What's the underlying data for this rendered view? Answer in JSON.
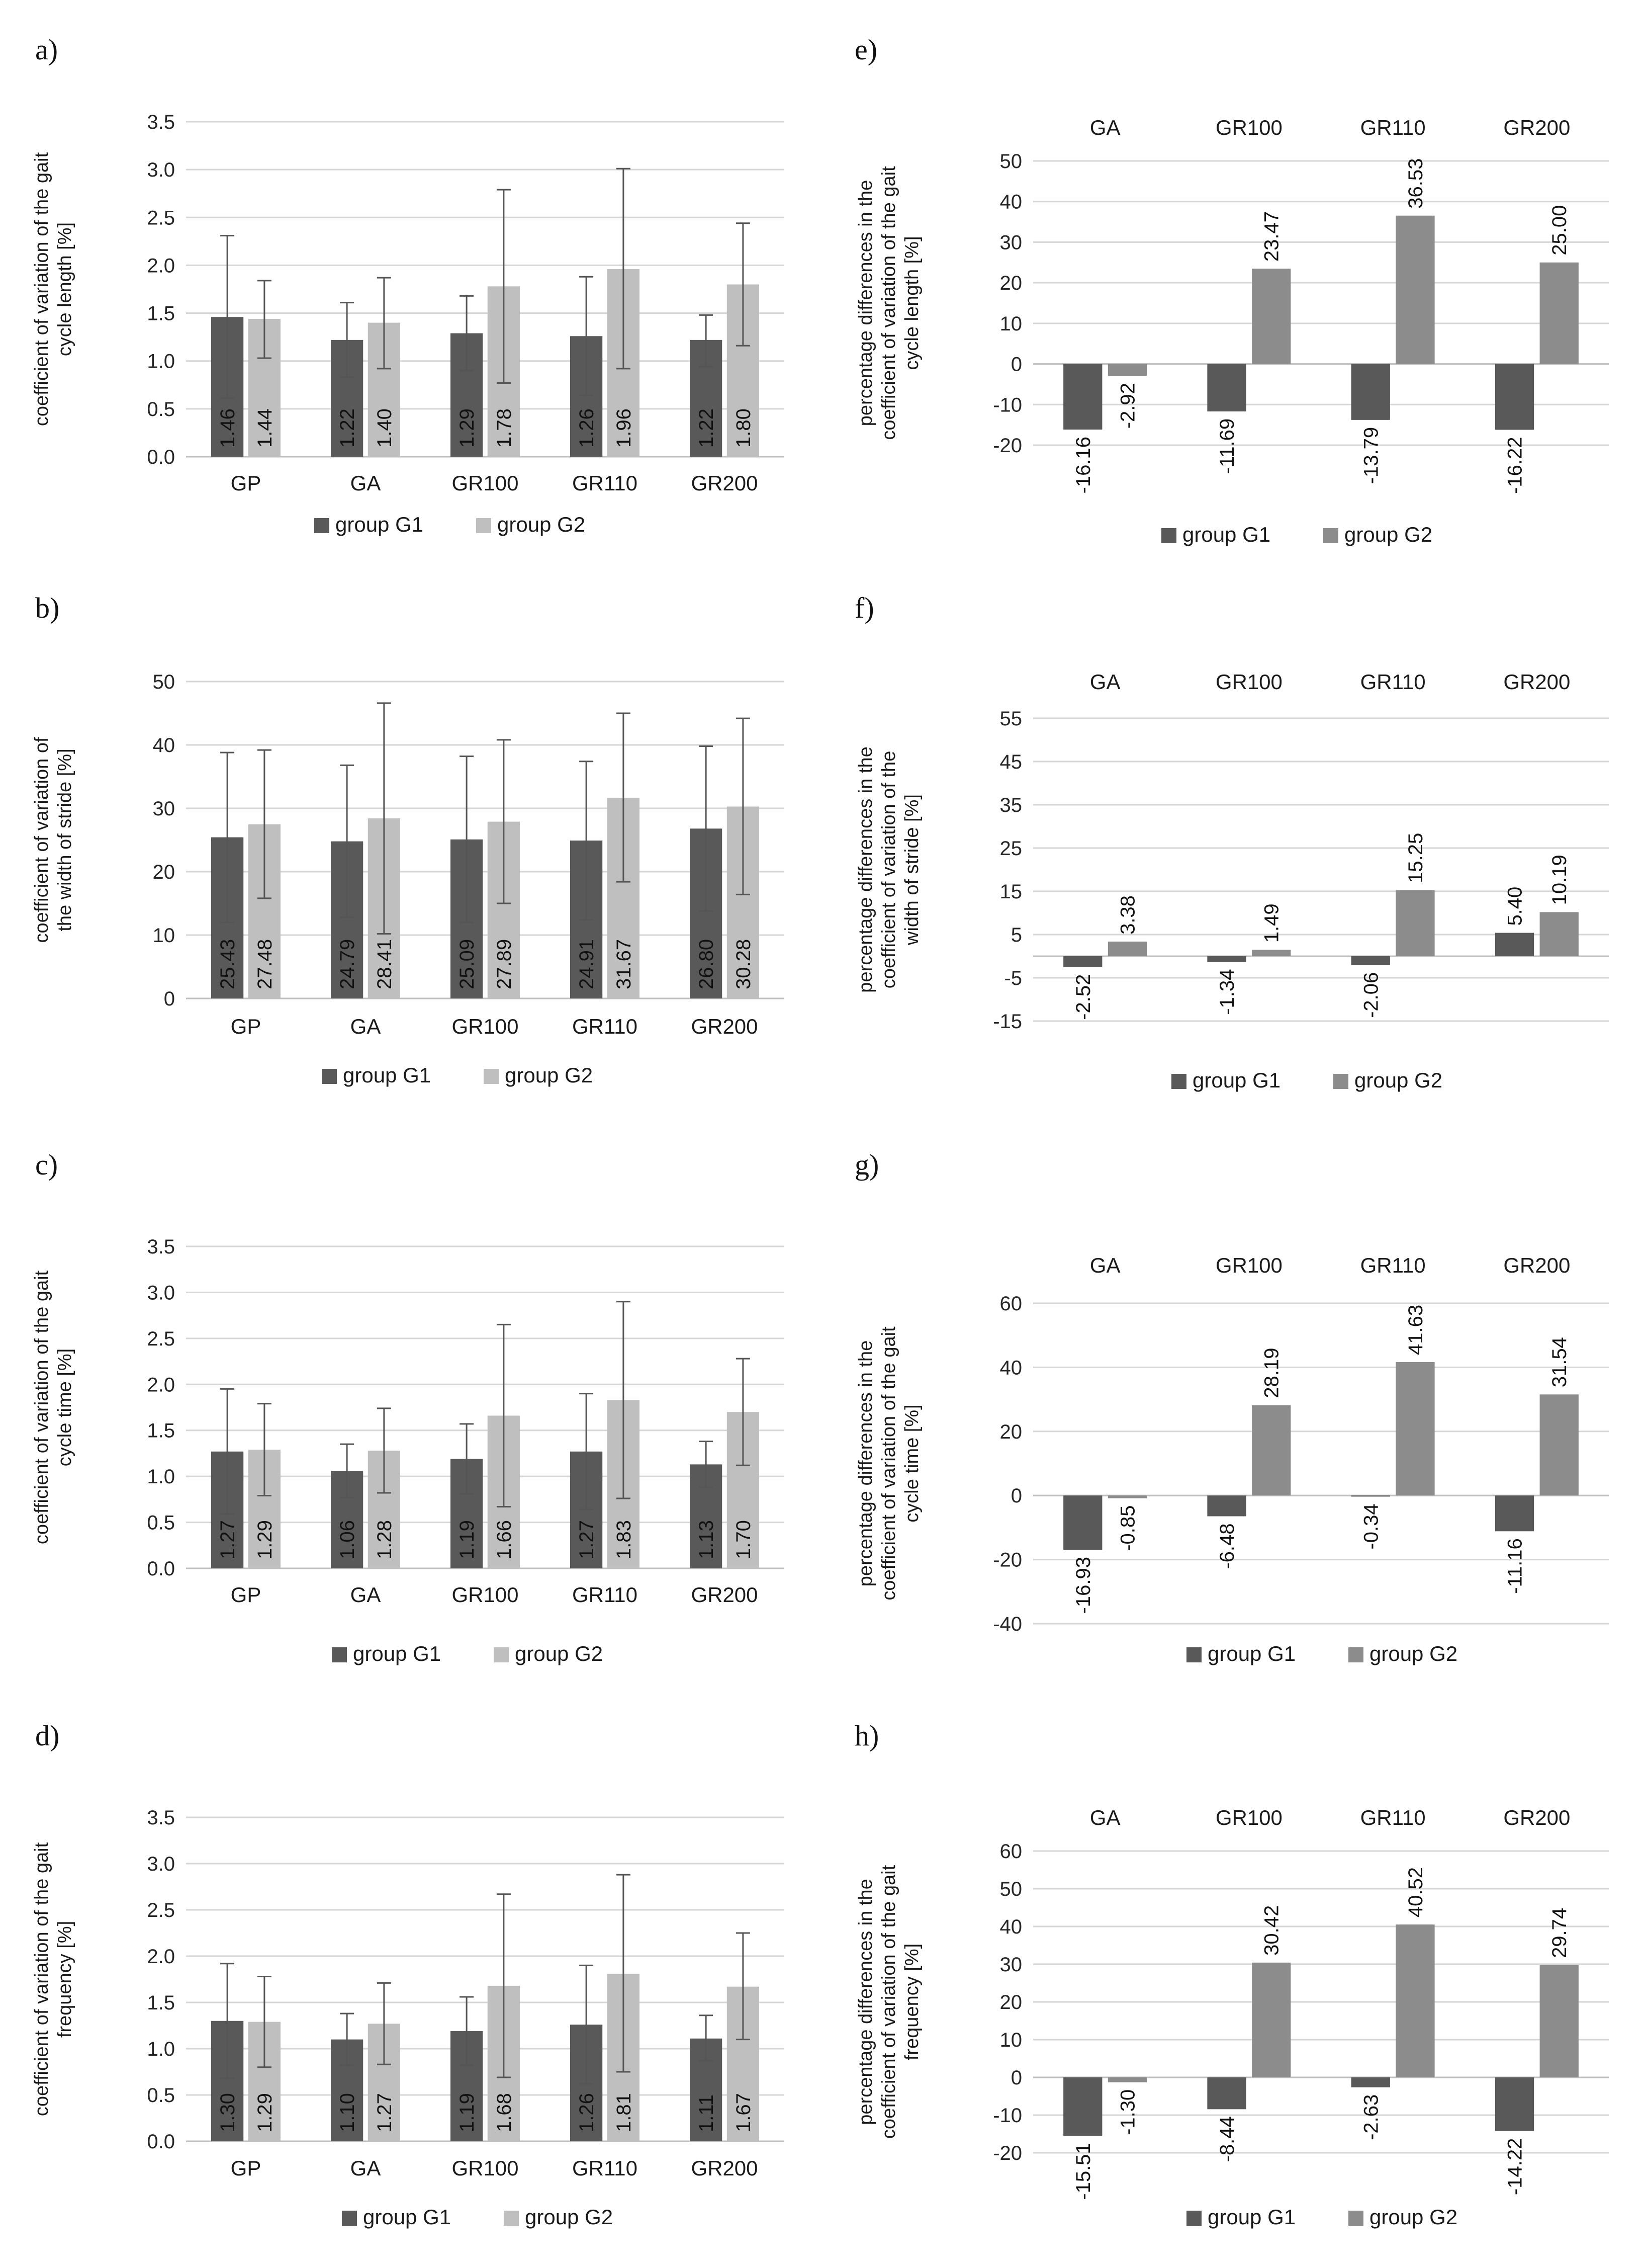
{
  "chart_data": [
    {
      "panel": "a)",
      "type": "bar",
      "ylabel": "coefficient of variation of the gait cycle length [%]",
      "categories": [
        "GP",
        "GA",
        "GR100",
        "GR110",
        "GR200"
      ],
      "ylim": [
        0,
        3.5
      ],
      "yticks": [
        "0.0",
        "0.5",
        "1.0",
        "1.5",
        "2.0",
        "2.5",
        "3.0",
        "3.5"
      ],
      "series": [
        {
          "name": "group G1",
          "color": "#595959",
          "values": [
            1.46,
            1.22,
            1.29,
            1.26,
            1.22
          ],
          "labels": [
            "1.46",
            "1.22",
            "1.29",
            "1.26",
            "1.22"
          ],
          "err_low": [
            0.61,
            0.83,
            0.9,
            0.64,
            0.94
          ],
          "err_high": [
            2.31,
            1.61,
            1.68,
            1.88,
            1.48
          ]
        },
        {
          "name": "group G2",
          "color": "#bfbfbf",
          "values": [
            1.44,
            1.4,
            1.78,
            1.96,
            1.8
          ],
          "labels": [
            "1.44",
            "1.40",
            "1.78",
            "1.96",
            "1.80"
          ],
          "err_low": [
            1.03,
            0.92,
            0.77,
            0.92,
            1.16
          ],
          "err_high": [
            1.84,
            1.87,
            2.79,
            3.01,
            2.44
          ]
        }
      ],
      "legend": [
        "group G1",
        "group G2"
      ]
    },
    {
      "panel": "b)",
      "type": "bar",
      "ylabel": "coefficient of variation of the width of stride [%]",
      "categories": [
        "GP",
        "GA",
        "GR100",
        "GR110",
        "GR200"
      ],
      "ylim": [
        0,
        50
      ],
      "yticks": [
        "0",
        "10",
        "20",
        "30",
        "40",
        "50"
      ],
      "series": [
        {
          "name": "group G1",
          "color": "#595959",
          "values": [
            25.43,
            24.79,
            25.09,
            24.91,
            26.8
          ],
          "labels": [
            "25.43",
            "24.79",
            "25.09",
            "24.91",
            "26.80"
          ],
          "err_low": [
            12.0,
            12.8,
            12.0,
            12.4,
            13.8
          ],
          "err_high": [
            38.8,
            36.8,
            38.2,
            37.4,
            39.8
          ]
        },
        {
          "name": "group G2",
          "color": "#bfbfbf",
          "values": [
            27.48,
            28.41,
            27.89,
            31.67,
            30.28
          ],
          "labels": [
            "27.48",
            "28.41",
            "27.89",
            "31.67",
            "30.28"
          ],
          "err_low": [
            15.8,
            10.2,
            15.0,
            18.4,
            16.4
          ],
          "err_high": [
            39.2,
            46.6,
            40.8,
            45.0,
            44.2
          ]
        }
      ],
      "legend": [
        "group G1",
        "group G2"
      ]
    },
    {
      "panel": "c)",
      "type": "bar",
      "ylabel": "coefficient of variation of the gait cycle time [%]",
      "categories": [
        "GP",
        "GA",
        "GR100",
        "GR110",
        "GR200"
      ],
      "ylim": [
        0,
        3.5
      ],
      "yticks": [
        "0.0",
        "0.5",
        "1.0",
        "1.5",
        "2.0",
        "2.5",
        "3.0",
        "3.5"
      ],
      "series": [
        {
          "name": "group G1",
          "color": "#595959",
          "values": [
            1.27,
            1.06,
            1.19,
            1.27,
            1.13
          ],
          "labels": [
            "1.27",
            "1.06",
            "1.19",
            "1.27",
            "1.13"
          ],
          "err_low": [
            0.59,
            0.77,
            0.81,
            0.64,
            0.88
          ],
          "err_high": [
            1.95,
            1.35,
            1.57,
            1.9,
            1.38
          ]
        },
        {
          "name": "group G2",
          "color": "#bfbfbf",
          "values": [
            1.29,
            1.28,
            1.66,
            1.83,
            1.7
          ],
          "labels": [
            "1.29",
            "1.28",
            "1.66",
            "1.83",
            "1.70"
          ],
          "err_low": [
            0.79,
            0.82,
            0.67,
            0.76,
            1.12
          ],
          "err_high": [
            1.79,
            1.74,
            2.65,
            2.9,
            2.28
          ]
        }
      ],
      "legend": [
        "group G1",
        "group G2"
      ]
    },
    {
      "panel": "d)",
      "type": "bar",
      "ylabel": "coefficient of variation of the gait frequency [%]",
      "categories": [
        "GP",
        "GA",
        "GR100",
        "GR110",
        "GR200"
      ],
      "ylim": [
        0,
        3.5
      ],
      "yticks": [
        "0.0",
        "0.5",
        "1.0",
        "1.5",
        "2.0",
        "2.5",
        "3.0",
        "3.5"
      ],
      "series": [
        {
          "name": "group G1",
          "color": "#595959",
          "values": [
            1.3,
            1.1,
            1.19,
            1.26,
            1.11
          ],
          "labels": [
            "1.30",
            "1.10",
            "1.19",
            "1.26",
            "1.11"
          ],
          "err_low": [
            0.68,
            0.82,
            0.82,
            0.62,
            0.87
          ],
          "err_high": [
            1.92,
            1.38,
            1.56,
            1.9,
            1.36
          ]
        },
        {
          "name": "group G2",
          "color": "#bfbfbf",
          "values": [
            1.29,
            1.27,
            1.68,
            1.81,
            1.67
          ],
          "labels": [
            "1.29",
            "1.27",
            "1.68",
            "1.81",
            "1.67"
          ],
          "err_low": [
            0.8,
            0.83,
            0.69,
            0.75,
            1.1
          ],
          "err_high": [
            1.78,
            1.71,
            2.67,
            2.88,
            2.25
          ]
        }
      ],
      "legend": [
        "group G1",
        "group G2"
      ]
    },
    {
      "panel": "e)",
      "type": "bar",
      "ylabel": "percentage differences in the coefficient of variation of the gait cycle length [%]",
      "categories": [
        "GA",
        "GR100",
        "GR110",
        "GR200"
      ],
      "ylim": [
        -20,
        50
      ],
      "yticks": [
        "-20",
        "-10",
        "0",
        "10",
        "20",
        "30",
        "40",
        "50"
      ],
      "series": [
        {
          "name": "group G1",
          "color": "#595959",
          "values": [
            -16.16,
            -11.69,
            -13.79,
            -16.22
          ],
          "labels": [
            "-16.16",
            "-11.69",
            "-13.79",
            "-16.22"
          ]
        },
        {
          "name": "group G2",
          "color": "#8c8c8c",
          "values": [
            -2.92,
            23.47,
            36.53,
            25.0
          ],
          "labels": [
            "-2.92",
            "23.47",
            "36.53",
            "25.00"
          ]
        }
      ],
      "legend": [
        "group G1",
        "group G2"
      ]
    },
    {
      "panel": "f)",
      "type": "bar",
      "ylabel": "percentage differences in the coefficient of variation of the width of stride [%]",
      "categories": [
        "GA",
        "GR100",
        "GR110",
        "GR200"
      ],
      "ylim": [
        -15,
        55
      ],
      "yticks": [
        "-15",
        "-5",
        "5",
        "15",
        "25",
        "35",
        "45",
        "55"
      ],
      "series": [
        {
          "name": "group G1",
          "color": "#595959",
          "values": [
            -2.52,
            -1.34,
            -2.06,
            5.4
          ],
          "labels": [
            "-2.52",
            "-1.34",
            "-2.06",
            "5.40"
          ]
        },
        {
          "name": "group G2",
          "color": "#8c8c8c",
          "values": [
            3.38,
            1.49,
            15.25,
            10.19
          ],
          "labels": [
            "3.38",
            "1.49",
            "15.25",
            "10.19"
          ]
        }
      ],
      "legend": [
        "group G1",
        "group G2"
      ]
    },
    {
      "panel": "g)",
      "type": "bar",
      "ylabel": "percentage differences in the coefficient of variation of the gait cycle time [%]",
      "categories": [
        "GA",
        "GR100",
        "GR110",
        "GR200"
      ],
      "ylim": [
        -40,
        60
      ],
      "yticks": [
        "-40",
        "-20",
        "0",
        "20",
        "40",
        "60"
      ],
      "series": [
        {
          "name": "group G1",
          "color": "#595959",
          "values": [
            -16.93,
            -6.48,
            -0.34,
            -11.16
          ],
          "labels": [
            "-16.93",
            "-6.48",
            "-0.34",
            "-11.16"
          ]
        },
        {
          "name": "group G2",
          "color": "#8c8c8c",
          "values": [
            -0.85,
            28.19,
            41.63,
            31.54
          ],
          "labels": [
            "-0.85",
            "28.19",
            "41.63",
            "31.54"
          ]
        }
      ],
      "legend": [
        "group G1",
        "group G2"
      ]
    },
    {
      "panel": "h)",
      "type": "bar",
      "ylabel": "percentage differences in the coefficient of variation of the gait frequency [%]",
      "categories": [
        "GA",
        "GR100",
        "GR110",
        "GR200"
      ],
      "ylim": [
        -20,
        60
      ],
      "yticks": [
        "-20",
        "-10",
        "0",
        "10",
        "20",
        "30",
        "40",
        "50",
        "60"
      ],
      "series": [
        {
          "name": "group G1",
          "color": "#595959",
          "values": [
            -15.51,
            -8.44,
            -2.63,
            -14.22
          ],
          "labels": [
            "-15.51",
            "-8.44",
            "-2.63",
            "-14.22"
          ]
        },
        {
          "name": "group G2",
          "color": "#8c8c8c",
          "values": [
            -1.3,
            30.42,
            40.52,
            29.74
          ],
          "labels": [
            "-1.30",
            "30.42",
            "40.52",
            "29.74"
          ]
        }
      ],
      "legend": [
        "group G1",
        "group G2"
      ]
    }
  ]
}
